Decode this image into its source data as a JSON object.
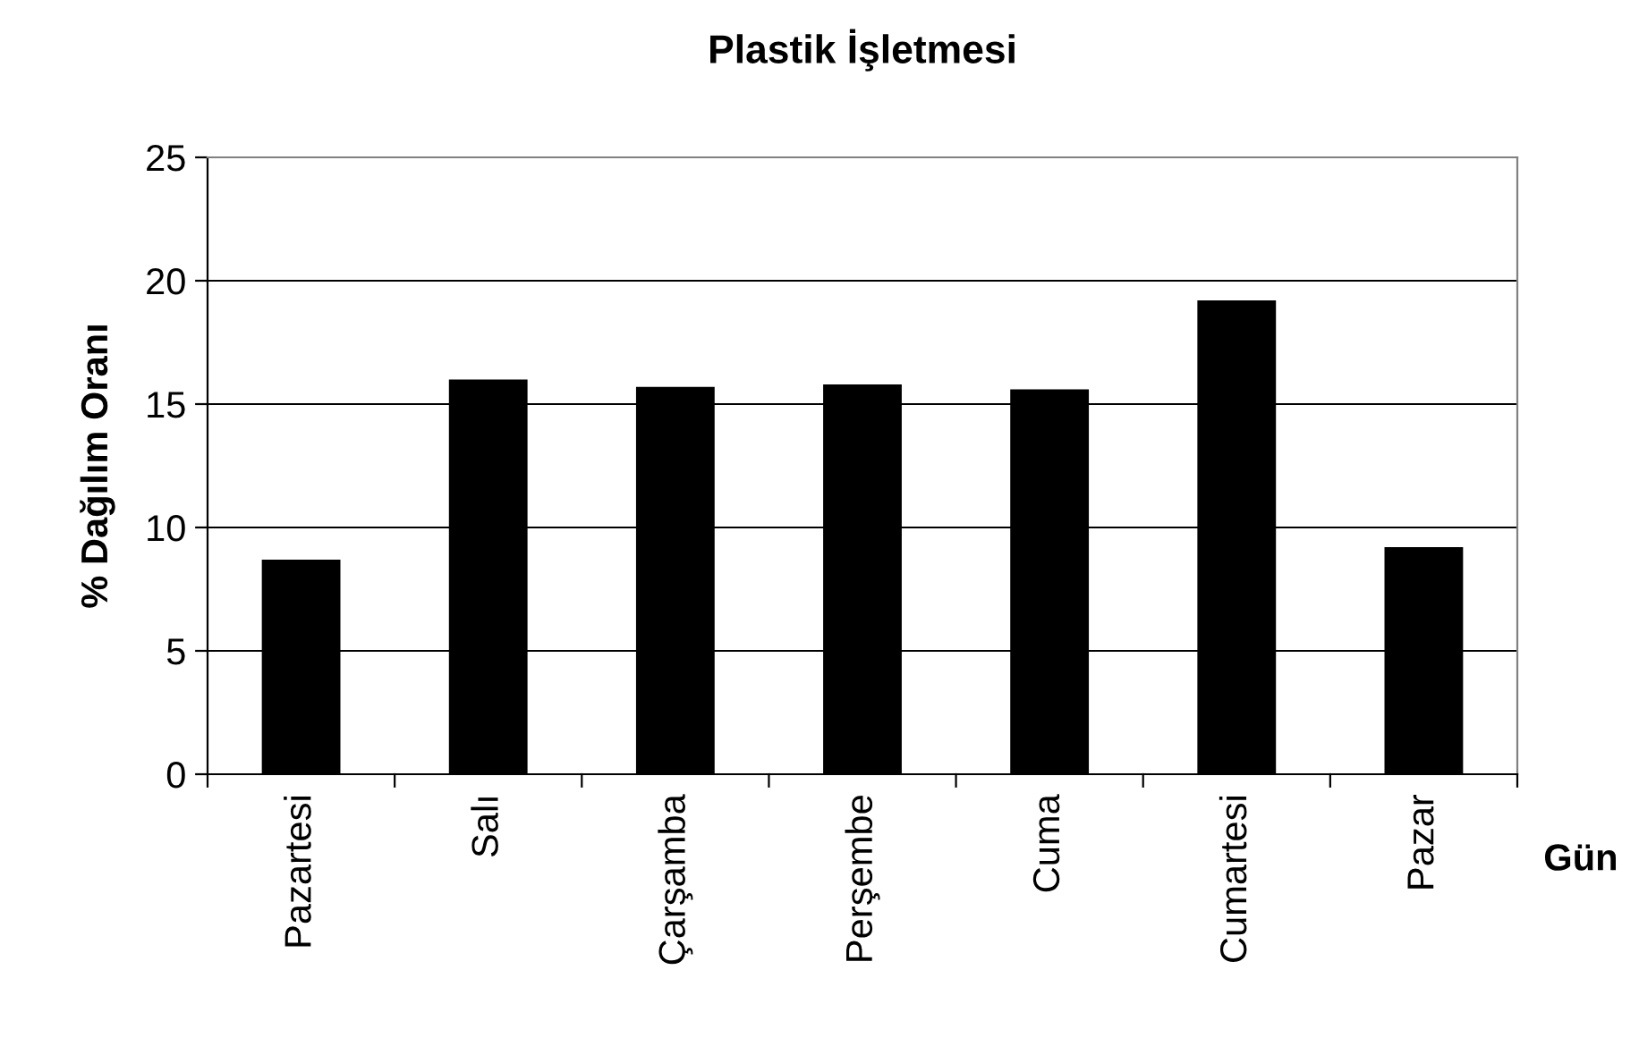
{
  "chart_data": {
    "type": "bar",
    "title": "Plastik İşletmesi",
    "xlabel": "Gün",
    "ylabel": "% Dağılım Oranı",
    "categories": [
      "Pazartesi",
      "Salı",
      "Çarşamba",
      "Perşembe",
      "Cuma",
      "Cumartesi",
      "Pazar"
    ],
    "values": [
      8.7,
      16.0,
      15.7,
      15.8,
      15.6,
      19.2,
      9.2
    ],
    "color": "#000000",
    "ylim": [
      0,
      25
    ],
    "yticks": [
      0,
      5,
      10,
      15,
      20,
      25
    ],
    "grid": "y"
  }
}
